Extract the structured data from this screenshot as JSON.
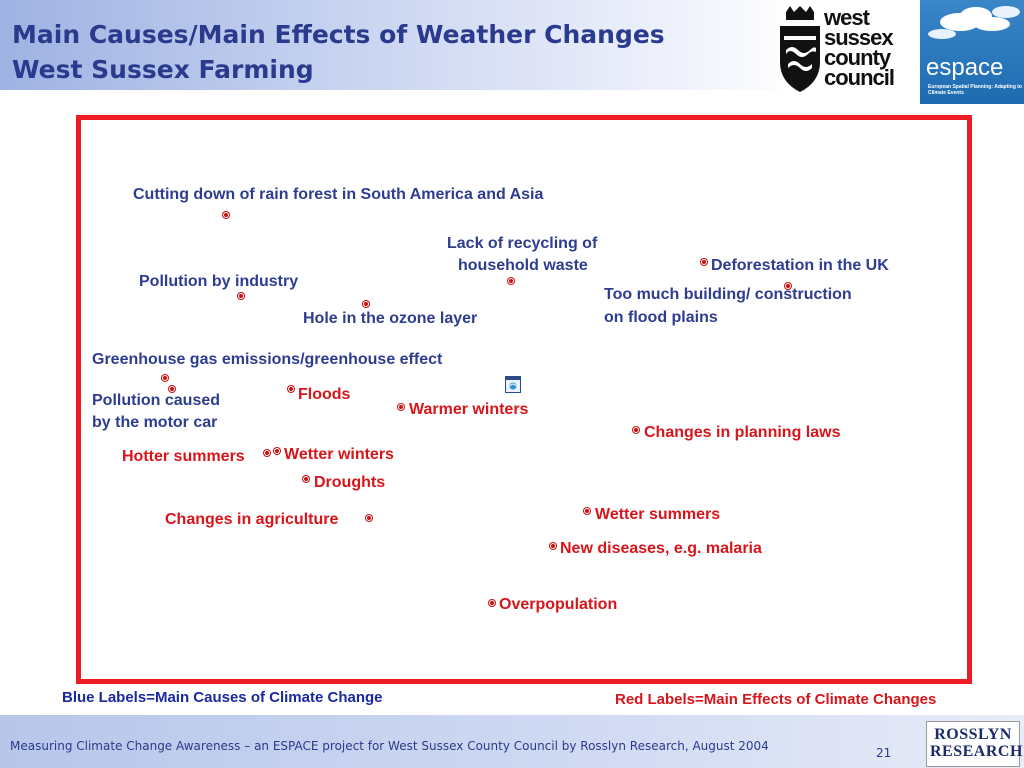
{
  "header": {
    "title_line1": "Main Causes/Main Effects of Weather Changes",
    "title_line2": "West Sussex Farming",
    "council_logo": [
      "west",
      "sussex",
      "county",
      "council"
    ],
    "espace_logo": "espace",
    "espace_sub": "European Spatial Planning: Adapting to Climate Events"
  },
  "causes": [
    {
      "text": "Cutting down of rain forest in South America and Asia"
    },
    {
      "text": "Lack of recycling of"
    },
    {
      "text": "household waste"
    },
    {
      "text": "Deforestation in the UK"
    },
    {
      "text": "Pollution by industry"
    },
    {
      "text": "Too much building/ construction"
    },
    {
      "text": "on flood plains"
    },
    {
      "text": "Hole in the ozone layer"
    },
    {
      "text": "Greenhouse gas emissions/greenhouse effect"
    },
    {
      "text": "Pollution caused"
    },
    {
      "text": "by the motor car"
    }
  ],
  "effects": [
    {
      "text": "Floods"
    },
    {
      "text": "Warmer winters"
    },
    {
      "text": "Changes in planning laws"
    },
    {
      "text": "Hotter summers"
    },
    {
      "text": "Wetter winters"
    },
    {
      "text": "Droughts"
    },
    {
      "text": "Changes in agriculture"
    },
    {
      "text": "Wetter summers"
    },
    {
      "text": "New diseases, e.g. malaria"
    },
    {
      "text": "Overpopulation"
    }
  ],
  "legend": {
    "blue": "Blue Labels=Main Causes of Climate Change",
    "red": "Red Labels=Main Effects of Climate Changes"
  },
  "footer": {
    "text": "Measuring Climate Change Awareness – an ESPACE project for West Sussex  County Council by Rosslyn Research, August 2004",
    "page": "21",
    "logo_line1": "ROSSLYN",
    "logo_line2": "RESEARCH"
  },
  "colors": {
    "cause": "#2e3d8f",
    "effect": "#d7151a",
    "frame": "#ee1c24"
  }
}
